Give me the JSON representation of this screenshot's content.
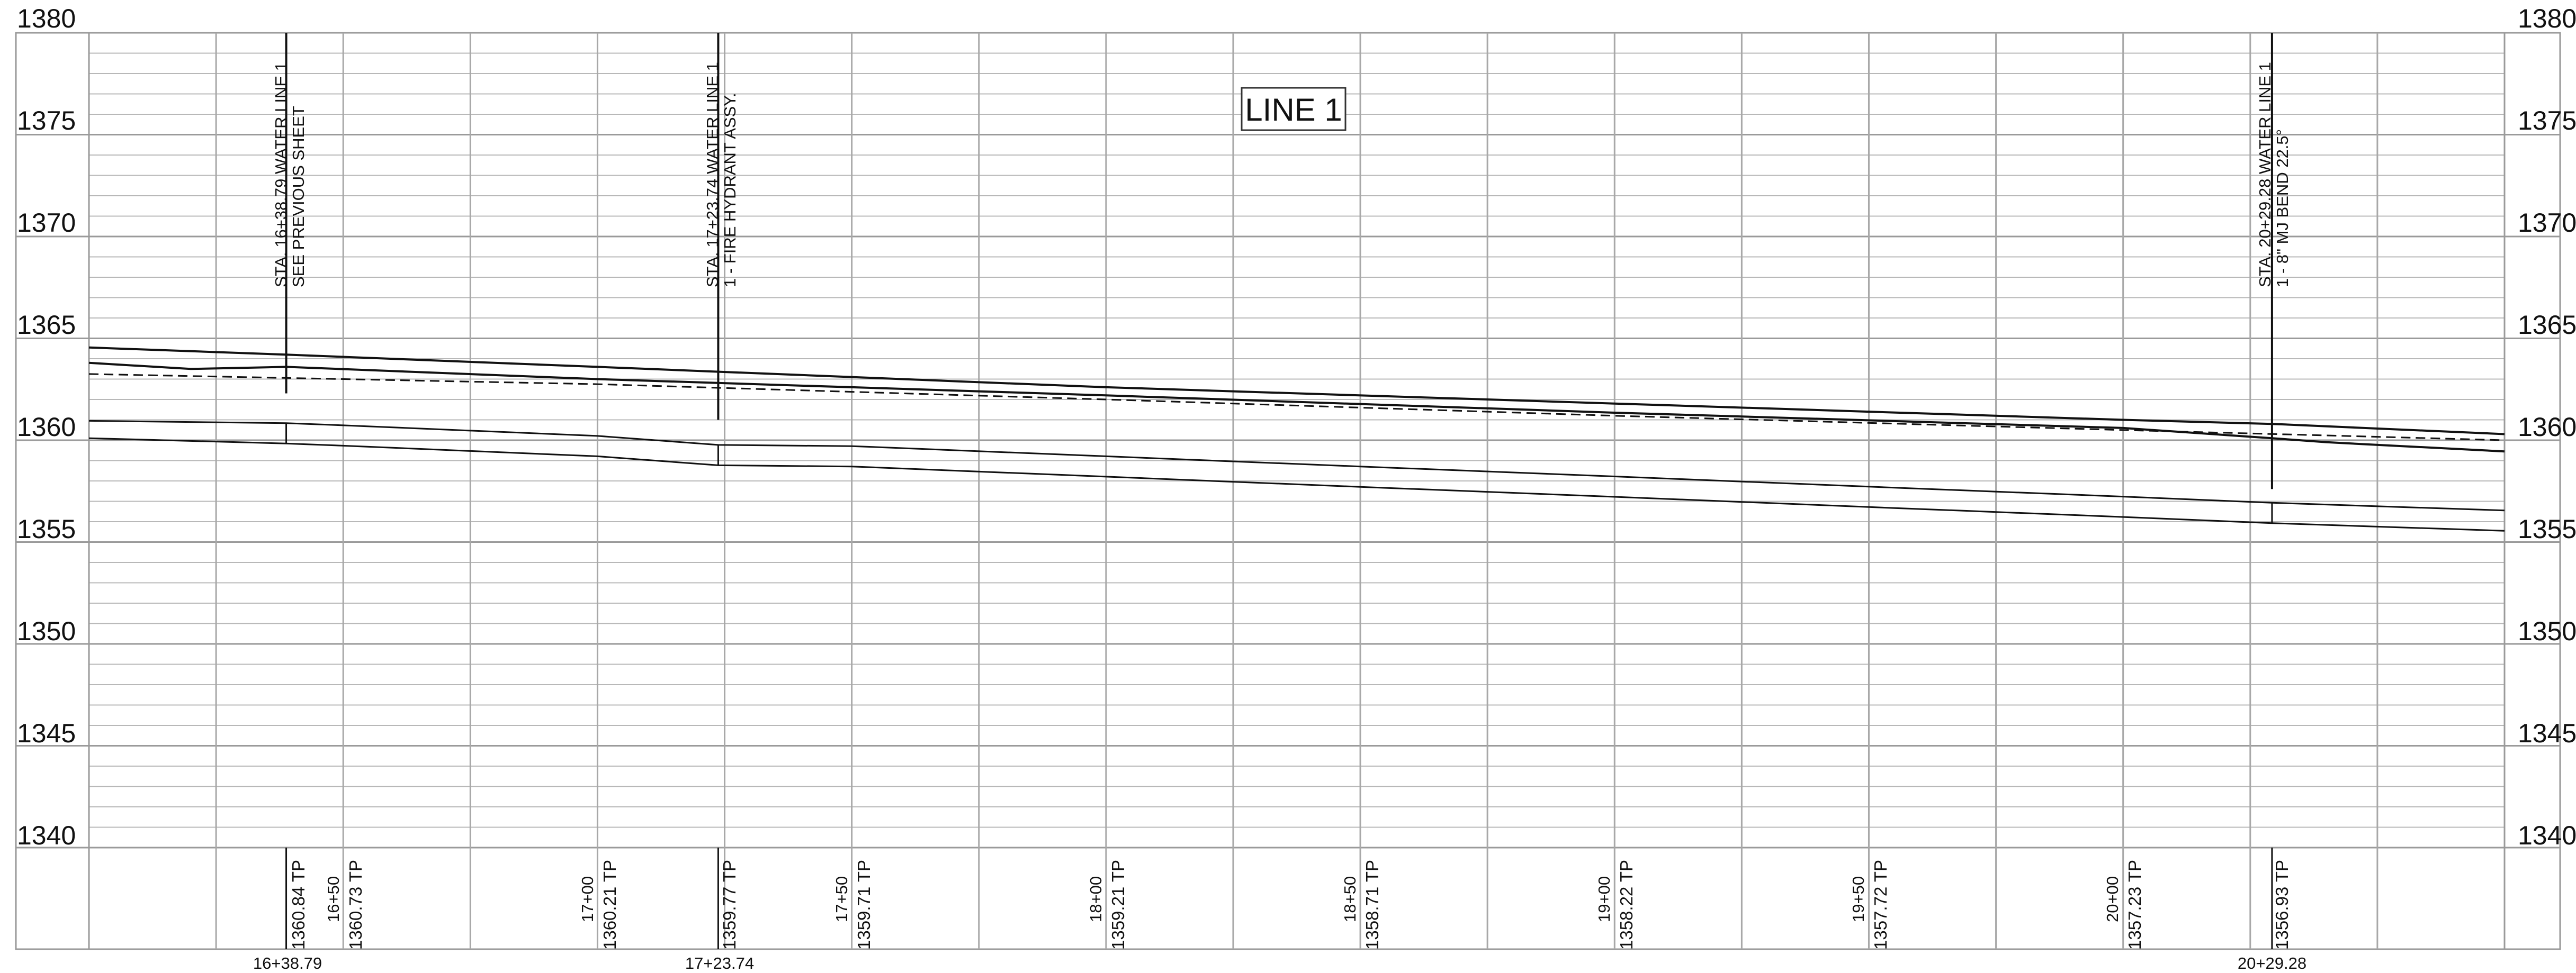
{
  "title": "LINE 1",
  "elevation_axis": {
    "labels": [
      "1380",
      "1375",
      "1370",
      "1365",
      "1360",
      "1355",
      "1350",
      "1345",
      "1340"
    ]
  },
  "station_axis": {
    "labels": [
      "16+50",
      "17+00",
      "17+50",
      "18+00",
      "18+50",
      "19+00",
      "19+50",
      "20+00"
    ]
  },
  "tp_labels": [
    "1360.84 TP",
    "1360.73 TP",
    "1360.21 TP",
    "1359.77 TP",
    "1359.71 TP",
    "1359.21 TP",
    "1358.71 TP",
    "1358.22 TP",
    "1357.72 TP",
    "1357.23 TP",
    "1356.93 TP"
  ],
  "callouts": [
    {
      "line1": "STA. 16+38.79 WATER LINE 1",
      "line2": "SEE PREVIOUS SHEET",
      "bottom_station": "16+38.79"
    },
    {
      "line1": "STA. 17+23.74 WATER LINE 1",
      "line2": "1 - FIRE HYDRANT ASSY.",
      "bottom_station": "17+23.74"
    },
    {
      "line1": "STA. 20+29.28 WATER LINE 1",
      "line2": "1 - 8\" MJ BEND 22.5°",
      "bottom_station": "20+29.28"
    }
  ],
  "profile": {
    "x_units": "feet (station)",
    "y_units": "feet (elevation)",
    "existing_grade": [
      [
        1600,
        1364.55
      ],
      [
        1638.79,
        1364.2
      ],
      [
        1700,
        1363.6
      ],
      [
        1800,
        1362.6
      ],
      [
        1900,
        1361.8
      ],
      [
        2000,
        1361.0
      ],
      [
        2029.28,
        1360.8
      ],
      [
        2075,
        1360.3
      ]
    ],
    "finished_grade": [
      [
        1600,
        1363.8
      ],
      [
        1620,
        1363.5
      ],
      [
        1638.79,
        1363.6
      ],
      [
        1700,
        1363.0
      ],
      [
        1800,
        1362.2
      ],
      [
        1900,
        1361.35
      ],
      [
        2000,
        1360.6
      ],
      [
        2029.28,
        1360.1
      ],
      [
        2040,
        1359.9
      ],
      [
        2075,
        1359.45
      ]
    ],
    "dashed_grade": [
      [
        1600,
        1363.25
      ],
      [
        1700,
        1362.75
      ],
      [
        1800,
        1362.0
      ],
      [
        1900,
        1361.2
      ],
      [
        2000,
        1360.5
      ],
      [
        2075,
        1360.0
      ]
    ],
    "pipe_top": [
      [
        1600,
        1360.95
      ],
      [
        1638.79,
        1360.84
      ],
      [
        1650,
        1360.73
      ],
      [
        1700,
        1360.21
      ],
      [
        1723.74,
        1359.77
      ],
      [
        1750,
        1359.71
      ],
      [
        1800,
        1359.21
      ],
      [
        1850,
        1358.71
      ],
      [
        1900,
        1358.22
      ],
      [
        1950,
        1357.72
      ],
      [
        2000,
        1357.23
      ],
      [
        2029.28,
        1356.93
      ],
      [
        2075,
        1356.55
      ]
    ],
    "pipe_bottom": [
      [
        1600,
        1360.1
      ],
      [
        1638.79,
        1359.84
      ],
      [
        1650,
        1359.73
      ],
      [
        1700,
        1359.21
      ],
      [
        1723.74,
        1358.77
      ],
      [
        1750,
        1358.71
      ],
      [
        1800,
        1358.21
      ],
      [
        1850,
        1357.71
      ],
      [
        1900,
        1357.22
      ],
      [
        1950,
        1356.72
      ],
      [
        2000,
        1356.23
      ],
      [
        2029.28,
        1355.93
      ],
      [
        2075,
        1355.55
      ]
    ]
  }
}
